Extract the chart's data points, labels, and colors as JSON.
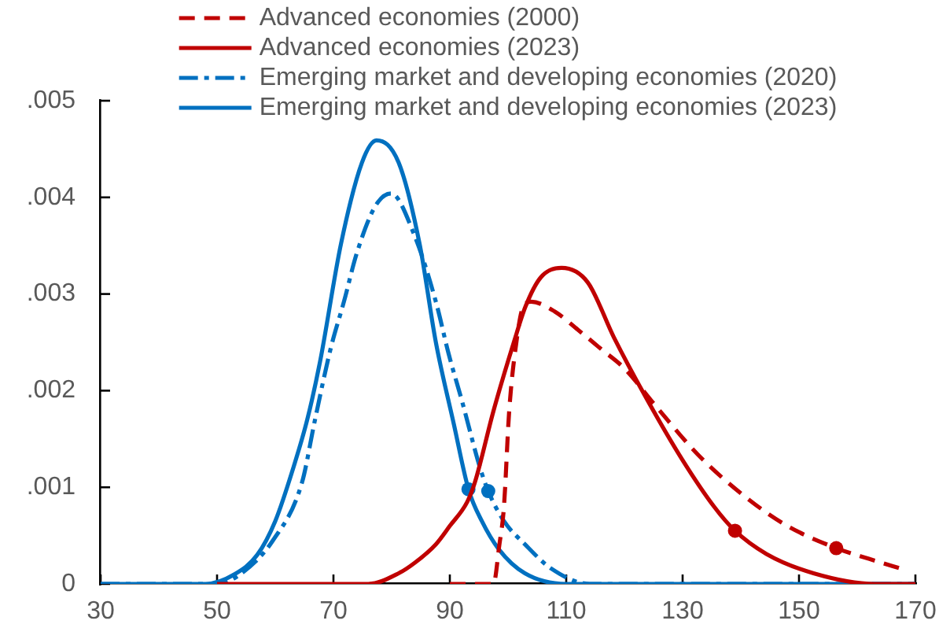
{
  "chart_data": {
    "type": "line",
    "xlim": [
      30,
      170
    ],
    "ylim": [
      0,
      0.005
    ],
    "xticks": [
      30,
      50,
      70,
      90,
      110,
      130,
      150,
      170
    ],
    "yticks": [
      0,
      {
        "value": 0.001,
        "label": ".001"
      },
      {
        "value": 0.002,
        "label": ".002"
      },
      {
        "value": 0.003,
        "label": ".003"
      },
      {
        "value": 0.004,
        "label": ".004"
      },
      {
        "value": 0.005,
        "label": ".005"
      }
    ],
    "grid": false,
    "legend": "top",
    "series": [
      {
        "name": "Advanced economies (2000)",
        "color": "#c00000",
        "line_style": "dashed",
        "marker": "none",
        "x": [
          90,
          97.5,
          98.5,
          99.3,
          100.2,
          101.5,
          102.5,
          104,
          108,
          112,
          116,
          120,
          125.4,
          132.6,
          140.8,
          148,
          156.4,
          162,
          168
        ],
        "values": [
          0,
          0,
          0.0004,
          0.0008,
          0.00179,
          0.00253,
          0.00285,
          0.00292,
          0.00282,
          0.00263,
          0.00243,
          0.00223,
          0.00184,
          0.00134,
          0.0009,
          0.0006,
          0.00037,
          0.00026,
          0.00015
        ]
      },
      {
        "name": "Advanced economies (2023)",
        "color": "#c00000",
        "line_style": "solid",
        "marker": "none",
        "x": [
          50,
          76,
          81.2,
          84,
          87.6,
          90,
          93,
          94.3,
          97.5,
          101.1,
          103,
          105.6,
          109.2,
          113.7,
          118.2,
          123.6,
          129.9,
          135.4,
          139,
          144.4,
          152.5,
          163,
          170
        ],
        "values": [
          0,
          0,
          0.00011,
          0.00022,
          0.00041,
          0.0006,
          0.00085,
          0.00105,
          0.00179,
          0.00252,
          0.00287,
          0.00317,
          0.00327,
          0.00312,
          0.00255,
          0.00194,
          0.00129,
          0.0008,
          0.00055,
          0.00031,
          0.00011,
          0,
          0
        ]
      },
      {
        "name": "Emerging market and developing economies (2020)",
        "color": "#0070c0",
        "line_style": "dashdot",
        "marker": "none",
        "x": [
          30,
          50,
          54.2,
          59.6,
          64.6,
          66.8,
          69.5,
          71.8,
          74,
          77.2,
          79.9,
          83.9,
          87.6,
          89.8,
          92.1,
          95.2,
          96.6,
          99.3,
          102.9,
          107.4,
          114,
          170
        ],
        "values": [
          0,
          0,
          0.00011,
          0.00045,
          0.00105,
          0.00169,
          0.00243,
          0.00292,
          0.00342,
          0.00391,
          0.00404,
          0.00361,
          0.00292,
          0.00238,
          0.00189,
          0.0012,
          0.00096,
          0.00065,
          0.00041,
          0.00016,
          0,
          0
        ]
      },
      {
        "name": "Emerging market and developing economies (2023)",
        "color": "#0070c0",
        "line_style": "solid",
        "marker": "none",
        "x": [
          30,
          48,
          53,
          56.9,
          60,
          63.2,
          65.5,
          67.7,
          71.3,
          74.9,
          77.4,
          81.2,
          84.8,
          87.6,
          90.7,
          93.2,
          95.5,
          98.4,
          102.9,
          110,
          170
        ],
        "values": [
          0,
          0,
          0.0001,
          0.0003,
          0.00065,
          0.00122,
          0.0017,
          0.0023,
          0.00352,
          0.00436,
          0.00459,
          0.00436,
          0.00352,
          0.0025,
          0.00165,
          0.00098,
          0.00065,
          0.00036,
          0.00011,
          0,
          0
        ]
      },
      {
        "type": "scatter",
        "color": "#c00000",
        "marker": "circle",
        "x": [
          139,
          156.4
        ],
        "values": [
          0.00055,
          0.00037
        ]
      },
      {
        "type": "scatter",
        "color": "#0070c0",
        "marker": "circle",
        "x": [
          93.2,
          96.6
        ],
        "values": [
          0.00098,
          0.00096
        ]
      }
    ]
  }
}
